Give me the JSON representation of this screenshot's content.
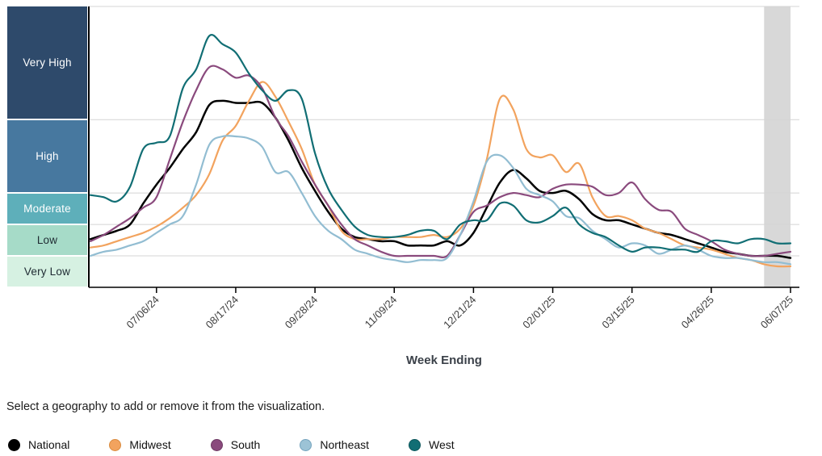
{
  "y_axis_bands": [
    {
      "label": "Very High",
      "color": "#2e4a6b",
      "text_color": "#ffffff",
      "range": [
        8,
        13.4
      ]
    },
    {
      "label": "High",
      "color": "#47789f",
      "text_color": "#ffffff",
      "range": [
        4.5,
        8
      ]
    },
    {
      "label": "Moderate",
      "color": "#5eafba",
      "text_color": "#ffffff",
      "range": [
        3,
        4.5
      ]
    },
    {
      "label": "Low",
      "color": "#a6dbc8",
      "text_color": "#1e2a32",
      "range": [
        1.5,
        3
      ]
    },
    {
      "label": "Very Low",
      "color": "#d6f1e2",
      "text_color": "#1e2a32",
      "range": [
        0,
        1.5
      ]
    }
  ],
  "chart_data": {
    "type": "line",
    "title": "",
    "xlabel": "Week Ending",
    "ylim": [
      0,
      13.4
    ],
    "grid": "horizontal",
    "gridline_values": [
      1.5,
      3,
      4.5,
      8,
      13.4
    ],
    "x": [
      "06/01/24",
      "06/08/24",
      "06/15/24",
      "06/22/24",
      "06/29/24",
      "07/06/24",
      "07/13/24",
      "07/20/24",
      "07/27/24",
      "08/03/24",
      "08/10/24",
      "08/17/24",
      "08/24/24",
      "08/31/24",
      "09/07/24",
      "09/14/24",
      "09/21/24",
      "09/28/24",
      "10/05/24",
      "10/12/24",
      "10/19/24",
      "10/26/24",
      "11/02/24",
      "11/09/24",
      "11/16/24",
      "11/23/24",
      "11/30/24",
      "12/07/24",
      "12/14/24",
      "12/21/24",
      "12/28/24",
      "01/04/25",
      "01/11/25",
      "01/18/25",
      "01/25/25",
      "02/01/25",
      "02/08/25",
      "02/15/25",
      "02/22/25",
      "03/01/25",
      "03/08/25",
      "03/15/25",
      "03/22/25",
      "03/29/25",
      "04/05/25",
      "04/12/25",
      "04/19/25",
      "04/26/25",
      "05/03/25",
      "05/10/25",
      "05/17/25",
      "05/24/25",
      "05/31/25",
      "06/07/25"
    ],
    "x_tick_labels": [
      "07/06/24",
      "08/17/24",
      "09/28/24",
      "11/09/24",
      "12/21/24",
      "02/01/25",
      "03/15/25",
      "04/26/25",
      "06/07/25"
    ],
    "series": [
      {
        "name": "National",
        "color": "#000000",
        "width": 2.5,
        "values": [
          2.3,
          2.5,
          2.7,
          3.0,
          4.0,
          4.9,
          5.7,
          6.6,
          7.4,
          8.7,
          8.9,
          8.8,
          8.8,
          8.8,
          8.1,
          7.0,
          5.7,
          4.6,
          3.6,
          2.8,
          2.4,
          2.3,
          2.2,
          2.2,
          2.0,
          2.0,
          2.0,
          2.2,
          2.0,
          2.6,
          3.8,
          5.0,
          5.6,
          5.2,
          4.6,
          4.5,
          4.6,
          4.2,
          3.5,
          3.2,
          3.2,
          3.0,
          2.8,
          2.6,
          2.5,
          2.3,
          2.1,
          1.9,
          1.7,
          1.6,
          1.5,
          1.5,
          1.5,
          1.4
        ]
      },
      {
        "name": "Midwest",
        "color": "#f2a35e",
        "width": 2.2,
        "values": [
          1.9,
          2.0,
          2.2,
          2.4,
          2.6,
          2.9,
          3.3,
          3.8,
          4.4,
          5.4,
          7.0,
          7.7,
          8.9,
          9.8,
          9.1,
          7.9,
          6.6,
          4.9,
          3.9,
          2.7,
          2.3,
          2.3,
          2.3,
          2.4,
          2.4,
          2.4,
          2.5,
          2.4,
          2.8,
          3.9,
          6.1,
          9.0,
          8.5,
          6.6,
          6.2,
          6.3,
          5.5,
          5.9,
          4.3,
          3.4,
          3.4,
          3.2,
          2.8,
          2.6,
          2.3,
          2.0,
          1.9,
          1.8,
          1.6,
          1.4,
          1.3,
          1.1,
          1.0,
          1.0
        ]
      },
      {
        "name": "South",
        "color": "#8a4a7d",
        "width": 2.2,
        "values": [
          2.2,
          2.5,
          2.9,
          3.3,
          3.8,
          4.3,
          6.1,
          7.9,
          9.4,
          10.5,
          10.4,
          10.0,
          10.1,
          9.5,
          8.1,
          7.2,
          6.0,
          4.9,
          3.9,
          3.0,
          2.3,
          2.0,
          1.7,
          1.5,
          1.5,
          1.5,
          1.5,
          1.5,
          2.5,
          3.6,
          3.9,
          4.3,
          4.5,
          4.4,
          4.3,
          4.7,
          4.9,
          4.9,
          4.8,
          4.4,
          4.5,
          5.0,
          4.2,
          3.7,
          3.6,
          2.8,
          2.5,
          2.2,
          1.8,
          1.6,
          1.5,
          1.5,
          1.6,
          1.7
        ]
      },
      {
        "name": "Northeast",
        "color": "#92bdd2",
        "width": 2.2,
        "values": [
          1.5,
          1.7,
          1.8,
          2.0,
          2.2,
          2.6,
          3.0,
          3.4,
          4.9,
          6.8,
          7.2,
          7.2,
          7.1,
          6.7,
          5.5,
          5.5,
          4.5,
          3.4,
          2.7,
          2.3,
          1.8,
          1.6,
          1.4,
          1.3,
          1.2,
          1.3,
          1.3,
          1.4,
          2.5,
          4.1,
          6.0,
          6.3,
          5.7,
          4.7,
          4.4,
          4.1,
          3.4,
          3.3,
          2.7,
          2.3,
          1.9,
          2.1,
          2.0,
          1.6,
          1.8,
          2.0,
          1.8,
          1.5,
          1.4,
          1.4,
          1.3,
          1.2,
          1.2,
          1.1
        ]
      },
      {
        "name": "West",
        "color": "#116e74",
        "width": 2.2,
        "values": [
          4.4,
          4.3,
          4.1,
          4.8,
          6.6,
          6.9,
          7.2,
          9.5,
          10.4,
          12.0,
          11.6,
          11.2,
          10.2,
          9.4,
          8.9,
          9.4,
          9.0,
          6.4,
          4.7,
          3.7,
          2.9,
          2.5,
          2.4,
          2.4,
          2.5,
          2.7,
          2.7,
          2.3,
          3.0,
          3.2,
          3.2,
          4.0,
          3.9,
          3.2,
          3.1,
          3.4,
          3.8,
          3.0,
          2.6,
          2.4,
          2.0,
          1.7,
          1.9,
          1.9,
          1.8,
          1.8,
          1.7,
          2.2,
          2.2,
          2.1,
          2.3,
          2.3,
          2.1,
          2.1
        ]
      }
    ],
    "provisional_region": {
      "from": "05/24/25",
      "to": "06/07/25",
      "color": "#d8d8d8"
    },
    "axis_color": "#000000",
    "gridline_color": "#d4d4d4",
    "tick_label_color": "#3d3d3d"
  },
  "footer": {
    "note": "Select a geography to add or remove it from the visualization.",
    "legend": [
      {
        "label": "National",
        "color": "#000000",
        "border": "#000000"
      },
      {
        "label": "Midwest",
        "color": "#f2a35e",
        "border": "#d98b3f"
      },
      {
        "label": "South",
        "color": "#8a4a7d",
        "border": "#6d3a63"
      },
      {
        "label": "Northeast",
        "color": "#9cc3d6",
        "border": "#74a3bd"
      },
      {
        "label": "West",
        "color": "#116e74",
        "border": "#0d565b"
      }
    ]
  }
}
